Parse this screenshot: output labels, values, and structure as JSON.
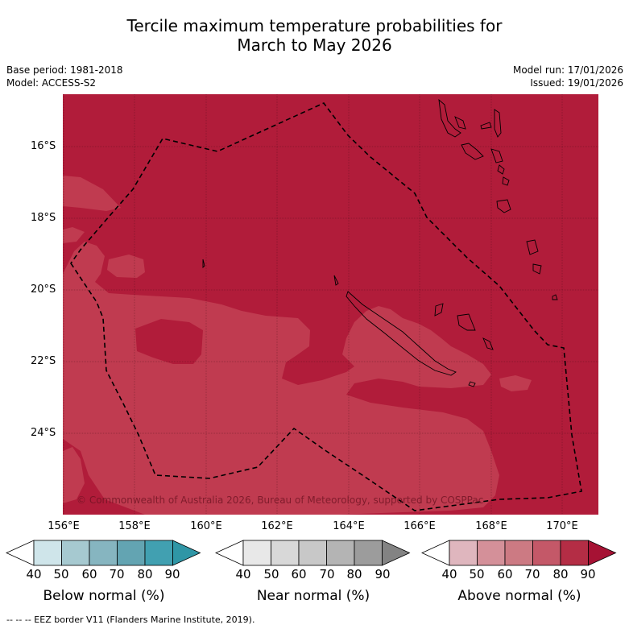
{
  "title": {
    "line1": "Tercile maximum temperature probabilities for",
    "line2": "March to May 2026"
  },
  "meta": {
    "base_period": "Base period: 1981-2018",
    "model": "Model: ACCESS-S2",
    "model_run": "Model run: 17/01/2026",
    "issued": "Issued: 19/01/2026"
  },
  "map": {
    "lat_labels": [
      "16°S",
      "18°S",
      "20°S",
      "22°S",
      "24°S"
    ],
    "lon_labels": [
      "156°E",
      "158°E",
      "160°E",
      "162°E",
      "164°E",
      "166°E",
      "168°E",
      "170°E"
    ],
    "credit": "© Commonwealth of Australia 2026, Bureau of Meteorology, supported by COSPPac",
    "colors": {
      "above_80_90": "#b11c3a",
      "above_70_80": "#c03b50"
    }
  },
  "colorbars": [
    {
      "label": "Below normal (%)",
      "ticks": [
        "40",
        "50",
        "60",
        "70",
        "80",
        "90"
      ],
      "colors": [
        "#ffffff",
        "#cfe5ea",
        "#a6c9d0",
        "#86b5c0",
        "#63a4b2",
        "#41a0b1",
        "#2f96a6"
      ]
    },
    {
      "label": "Near normal (%)",
      "ticks": [
        "40",
        "50",
        "60",
        "70",
        "80",
        "90"
      ],
      "colors": [
        "#ffffff",
        "#e8e8e8",
        "#d8d8d8",
        "#c8c8c8",
        "#b4b4b4",
        "#9c9c9c",
        "#838383"
      ]
    },
    {
      "label": "Above normal (%)",
      "ticks": [
        "40",
        "50",
        "60",
        "70",
        "80",
        "90"
      ],
      "colors": [
        "#ffffff",
        "#dfb6be",
        "#d49099",
        "#cc7a83",
        "#c45868",
        "#b42d45",
        "#a61234"
      ]
    }
  ],
  "footer": "--  --  -- EEZ border V11 (Flanders Marine Institute, 2019)."
}
